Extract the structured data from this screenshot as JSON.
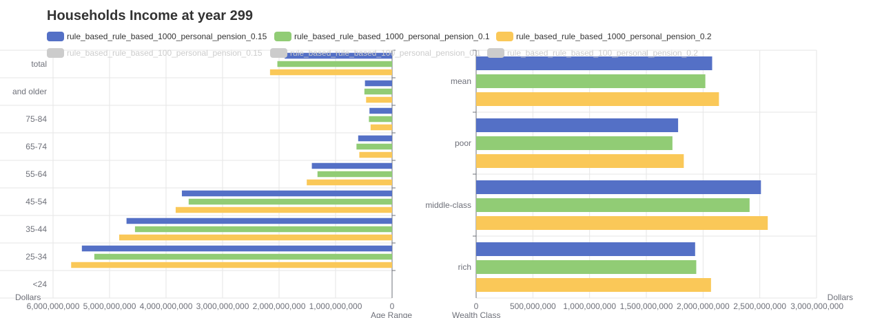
{
  "title": "Households Income at year 299",
  "legend": [
    {
      "name": "rule_based_rule_based_1000_personal_pension_0.15",
      "color": "#5470c6",
      "active": true
    },
    {
      "name": "rule_based_rule_based_1000_personal_pension_0.1",
      "color": "#91cc75",
      "active": true
    },
    {
      "name": "rule_based_rule_based_1000_personal_pension_0.2",
      "color": "#fac858",
      "active": true
    },
    {
      "name": "rule_based_rule_based_100_personal_pension_0.15",
      "color": "#cccccc",
      "active": false
    },
    {
      "name": "rule_based_rule_based_100_personal_pension_0.1",
      "color": "#cccccc",
      "active": false
    },
    {
      "name": "rule_based_rule_based_100_personal_pension_0.2",
      "color": "#cccccc",
      "active": false
    }
  ],
  "chart_data": [
    {
      "type": "bar",
      "orientation": "horizontal",
      "x_direction": "inverse",
      "categories": [
        "total",
        "and older",
        "75-84",
        "65-74",
        "55-64",
        "45-54",
        "35-44",
        "25-34",
        "<24"
      ],
      "series": [
        {
          "name": "rule_based_rule_based_1000_personal_pension_0.15",
          "values": [
            1900000000,
            480000000,
            400000000,
            600000000,
            1420000000,
            3720000000,
            4700000000,
            5490000000,
            0
          ]
        },
        {
          "name": "rule_based_rule_based_1000_personal_pension_0.1",
          "values": [
            2030000000,
            490000000,
            410000000,
            630000000,
            1320000000,
            3600000000,
            4550000000,
            5270000000,
            0
          ]
        },
        {
          "name": "rule_based_rule_based_1000_personal_pension_0.2",
          "values": [
            2160000000,
            460000000,
            380000000,
            580000000,
            1510000000,
            3830000000,
            4830000000,
            5680000000,
            0
          ]
        }
      ],
      "xlabel": "Dollars",
      "ylabel": "Age Range",
      "xlim": [
        0,
        6000000000
      ],
      "xticks": [
        "6,000,000,000",
        "5,000,000,000",
        "4,000,000,000",
        "3,000,000,000",
        "2,000,000,000",
        "1,000,000,000",
        "0"
      ],
      "grid": true
    },
    {
      "type": "bar",
      "orientation": "horizontal",
      "categories": [
        "mean",
        "poor",
        "middle-class",
        "rich"
      ],
      "series": [
        {
          "name": "rule_based_rule_based_1000_personal_pension_0.15",
          "values": [
            2080000000,
            1780000000,
            2510000000,
            1930000000
          ]
        },
        {
          "name": "rule_based_rule_based_1000_personal_pension_0.1",
          "values": [
            2020000000,
            1730000000,
            2410000000,
            1940000000
          ]
        },
        {
          "name": "rule_based_rule_based_1000_personal_pension_0.2",
          "values": [
            2140000000,
            1830000000,
            2570000000,
            2070000000
          ]
        }
      ],
      "xlabel": "Dollars",
      "ylabel": "Wealth Class",
      "xlim": [
        0,
        3000000000
      ],
      "xticks": [
        "0",
        "500,000,000",
        "1,000,000,000",
        "1,500,000,000",
        "2,000,000,000",
        "2,500,000,000",
        "3,000,000,000"
      ],
      "grid": true
    }
  ]
}
